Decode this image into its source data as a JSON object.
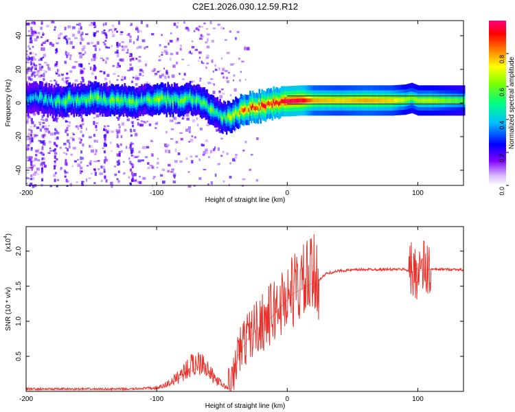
{
  "title": "C2E1.2026.030.12.59.R12",
  "chart_data": [
    {
      "type": "heatmap",
      "title": "C2E1.2026.030.12.59.R12",
      "xlabel": "Height of straight line (km)",
      "ylabel": "Frequency (Hz)",
      "xlim": [
        -200,
        135
      ],
      "ylim": [
        -49,
        49
      ],
      "xticks": [
        -200,
        -100,
        0,
        100
      ],
      "yticks": [
        40,
        20,
        0,
        -20,
        -40
      ],
      "xtick_labels": [
        "-200",
        "-100",
        "0",
        "100"
      ],
      "ytick_labels": [
        "40",
        "20",
        "0",
        "-20",
        "-40"
      ],
      "colorbar": {
        "label": "Normalized spectral amplitude",
        "range": [
          0,
          1
        ],
        "ticks": [
          0.0,
          0.2,
          0.4,
          0.6,
          0.8
        ],
        "tick_labels": [
          "0.0",
          "0.2",
          "0.4",
          "0.6",
          "0.8"
        ],
        "colors": [
          "#ffffff",
          "#8000ff",
          "#0000ff",
          "#00c0ff",
          "#00ff80",
          "#80ff00",
          "#ffff00",
          "#ff8000",
          "#ff0000",
          "#ff0080"
        ]
      },
      "ridge": {
        "x": [
          -200,
          -190,
          -180,
          -170,
          -160,
          -150,
          -140,
          -130,
          -120,
          -110,
          -100,
          -90,
          -80,
          -75,
          -70,
          -65,
          -60,
          -55,
          -50,
          -45,
          -40,
          -35,
          -30,
          -25,
          -20,
          -15,
          -10,
          -5,
          0,
          10,
          20,
          40,
          60,
          80,
          90,
          95,
          100,
          110,
          120,
          135
        ],
        "frequency": [
          2,
          3,
          1,
          2,
          2,
          3,
          2,
          2,
          1,
          1,
          2,
          2,
          2,
          3,
          2,
          0,
          -3,
          -6,
          -9,
          -9,
          -6,
          -4,
          -3,
          -2,
          -2,
          -1,
          0,
          1,
          1,
          1.5,
          1.5,
          1.5,
          1.5,
          1.5,
          2,
          3,
          1.5,
          1.5,
          1.5,
          1.5
        ],
        "amplitude": [
          0.3,
          0.45,
          0.4,
          0.5,
          0.45,
          0.55,
          0.45,
          0.5,
          0.5,
          0.45,
          0.55,
          0.5,
          0.5,
          0.45,
          0.5,
          0.55,
          0.5,
          0.45,
          0.45,
          0.55,
          0.6,
          0.75,
          0.8,
          0.85,
          0.9,
          0.85,
          0.9,
          0.95,
          0.95,
          0.95,
          0.75,
          0.7,
          0.75,
          0.7,
          0.6,
          0.55,
          0.6,
          0.6,
          0.55,
          0.5
        ]
      }
    },
    {
      "type": "line",
      "title": "",
      "xlabel": "Height of straight line (km)",
      "ylabel": "SNR (10 * v/v)",
      "exponent_label": "(x10",
      "exponent_value": "4",
      "exponent_close": ")",
      "xlim": [
        -200,
        135
      ],
      "ylim": [
        0,
        2.35
      ],
      "xticks": [
        -200,
        -100,
        0,
        100
      ],
      "yticks": [
        0.5,
        1.0,
        1.5,
        2.0
      ],
      "xtick_labels": [
        "-200",
        "-100",
        "0",
        "100"
      ],
      "ytick_labels": [
        "0.5",
        "1.0",
        "1.5",
        "2.0"
      ],
      "series": [
        {
          "name": "SNR",
          "color": "#e8312a",
          "x": [
            -200,
            -180,
            -160,
            -140,
            -120,
            -110,
            -100,
            -95,
            -90,
            -85,
            -80,
            -75,
            -70,
            -65,
            -60,
            -55,
            -50,
            -45,
            -42,
            -40,
            -38,
            -35,
            -30,
            -25,
            -20,
            -15,
            -10,
            -5,
            0,
            5,
            10,
            15,
            20,
            25,
            30,
            40,
            50,
            60,
            70,
            80,
            90,
            93,
            95,
            96,
            97,
            98,
            99,
            100,
            102,
            104,
            106,
            110,
            120,
            130,
            135
          ],
          "y": [
            0.02,
            0.02,
            0.02,
            0.02,
            0.02,
            0.03,
            0.04,
            0.06,
            0.1,
            0.15,
            0.22,
            0.28,
            0.32,
            0.38,
            0.22,
            0.14,
            0.08,
            0.03,
            0.05,
            0.3,
            0.5,
            0.6,
            0.75,
            0.85,
            0.95,
            1.0,
            1.1,
            1.2,
            1.3,
            1.4,
            1.45,
            1.5,
            1.55,
            1.6,
            1.68,
            1.72,
            1.73,
            1.74,
            1.74,
            1.74,
            1.74,
            1.72,
            1.68,
            1.7,
            1.72,
            1.74,
            1.76,
            1.74,
            1.72,
            1.74,
            1.73,
            1.74,
            1.74,
            1.74,
            1.73
          ]
        }
      ]
    }
  ]
}
